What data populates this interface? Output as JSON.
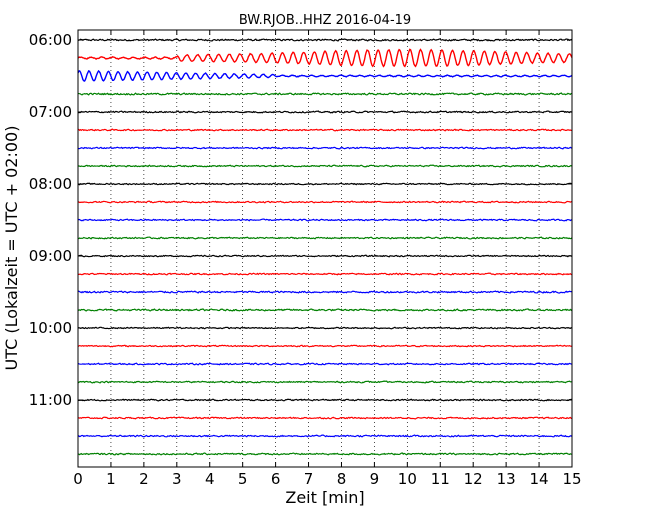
{
  "chart_data": {
    "type": "line",
    "title": "BW.RJOB..HHZ 2016-04-19",
    "xlabel": "Zeit  [min]",
    "ylabel": "UTC (Lokalzeit = UTC + 02:00)",
    "xlim": [
      0,
      15
    ],
    "x_ticks": [
      "0",
      "1",
      "2",
      "3",
      "4",
      "5",
      "6",
      "7",
      "8",
      "9",
      "10",
      "11",
      "12",
      "13",
      "14",
      "15"
    ],
    "y_tick_labels": [
      "06:00",
      "07:00",
      "08:00",
      "09:00",
      "10:00",
      "11:00"
    ],
    "grid": "vertical-dotted",
    "colors": [
      "#000000",
      "#ff0000",
      "#0000ff",
      "#008000"
    ],
    "traces": [
      {
        "start": "06:00",
        "color": "#000000",
        "amplitude": 0.15
      },
      {
        "start": "06:15",
        "color": "#ff0000",
        "amplitude": 0.5
      },
      {
        "start": "06:30",
        "color": "#0000ff",
        "amplitude": 0.35
      },
      {
        "start": "06:45",
        "color": "#008000",
        "amplitude": 0.15
      },
      {
        "start": "07:00",
        "color": "#000000",
        "amplitude": 0.12
      },
      {
        "start": "07:15",
        "color": "#ff0000",
        "amplitude": 0.1
      },
      {
        "start": "07:30",
        "color": "#0000ff",
        "amplitude": 0.1
      },
      {
        "start": "07:45",
        "color": "#008000",
        "amplitude": 0.1
      },
      {
        "start": "08:00",
        "color": "#000000",
        "amplitude": 0.08
      },
      {
        "start": "08:15",
        "color": "#ff0000",
        "amplitude": 0.1
      },
      {
        "start": "08:30",
        "color": "#0000ff",
        "amplitude": 0.1
      },
      {
        "start": "08:45",
        "color": "#008000",
        "amplitude": 0.1
      },
      {
        "start": "09:00",
        "color": "#000000",
        "amplitude": 0.08
      },
      {
        "start": "09:15",
        "color": "#ff0000",
        "amplitude": 0.1
      },
      {
        "start": "09:30",
        "color": "#0000ff",
        "amplitude": 0.15
      },
      {
        "start": "09:45",
        "color": "#008000",
        "amplitude": 0.15
      },
      {
        "start": "10:00",
        "color": "#000000",
        "amplitude": 0.08
      },
      {
        "start": "10:15",
        "color": "#ff0000",
        "amplitude": 0.08
      },
      {
        "start": "10:30",
        "color": "#0000ff",
        "amplitude": 0.1
      },
      {
        "start": "10:45",
        "color": "#008000",
        "amplitude": 0.1
      },
      {
        "start": "11:00",
        "color": "#000000",
        "amplitude": 0.1
      },
      {
        "start": "11:15",
        "color": "#ff0000",
        "amplitude": 0.1
      },
      {
        "start": "11:30",
        "color": "#0000ff",
        "amplitude": 0.12
      },
      {
        "start": "11:45",
        "color": "#008000",
        "amplitude": 0.12
      }
    ]
  }
}
